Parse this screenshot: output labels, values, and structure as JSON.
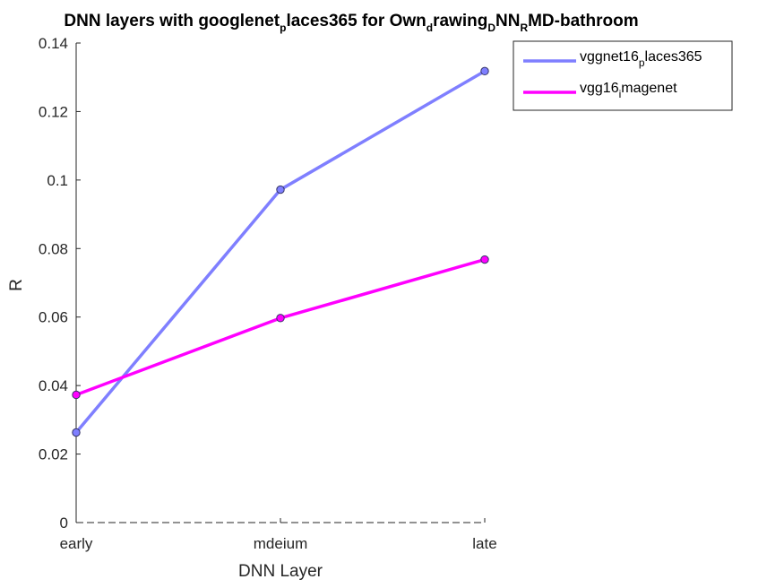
{
  "chart_data": {
    "type": "line",
    "title_parts": [
      {
        "text": "DNN layers with googlenet",
        "sub": false
      },
      {
        "text": "p",
        "sub": true
      },
      {
        "text": "laces365 for Own",
        "sub": false
      },
      {
        "text": "d",
        "sub": true
      },
      {
        "text": "rawing",
        "sub": false
      },
      {
        "text": "D",
        "sub": true
      },
      {
        "text": "NN",
        "sub": false
      },
      {
        "text": "R",
        "sub": true
      },
      {
        "text": "MD-bathroom",
        "sub": false
      }
    ],
    "xlabel": "DNN Layer",
    "ylabel": "R",
    "categories": [
      "early",
      "mdeium",
      "late"
    ],
    "ylim": [
      0,
      0.14
    ],
    "yticks": [
      "0",
      "0.02",
      "0.04",
      "0.06",
      "0.08",
      "0.1",
      "0.12",
      "0.14"
    ],
    "ytick_values": [
      0,
      0.02,
      0.04,
      0.06,
      0.08,
      0.1,
      0.12,
      0.14
    ],
    "grid": false,
    "legend_position": "outside-top-right",
    "series": [
      {
        "name_parts": [
          {
            "text": "vggnet16",
            "sub": false
          },
          {
            "text": "p",
            "sub": true
          },
          {
            "text": "laces365",
            "sub": false
          }
        ],
        "color": "#7f7fff",
        "marker_color": "#7f7fff",
        "values": [
          0.0263,
          0.0972,
          0.1318
        ]
      },
      {
        "name_parts": [
          {
            "text": "vgg16",
            "sub": false
          },
          {
            "text": "i",
            "sub": true
          },
          {
            "text": "magenet",
            "sub": false
          }
        ],
        "color": "#ff00ff",
        "marker_color": "#ff00ff",
        "values": [
          0.0373,
          0.0597,
          0.0768
        ]
      }
    ]
  }
}
